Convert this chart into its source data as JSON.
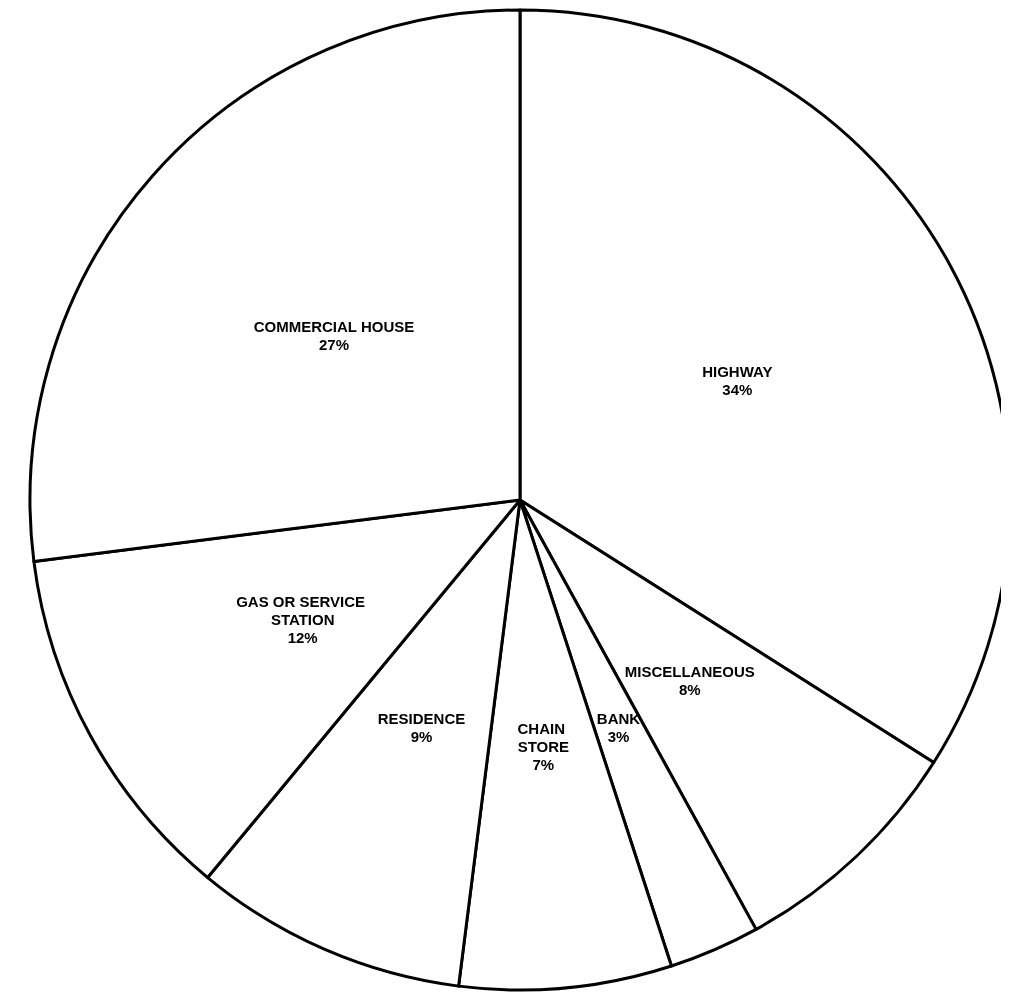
{
  "chart_data": {
    "type": "pie",
    "categories": [
      "HIGHWAY",
      "MISCELLANEOUS",
      "BANK",
      "CHAIN STORE",
      "RESIDENCE",
      "GAS OR SERVICE STATION",
      "COMMERCIAL HOUSE"
    ],
    "values": [
      34,
      8,
      3,
      7,
      9,
      12,
      27
    ],
    "value_labels": [
      "34%",
      "8%",
      "3%",
      "7%",
      "9%",
      "12%",
      "27%"
    ],
    "colors": [
      "#ffffff",
      "#ffffff",
      "#ffffff",
      "#ffffff",
      "#ffffff",
      "#ffffff",
      "#ffffff"
    ],
    "legend": false
  }
}
